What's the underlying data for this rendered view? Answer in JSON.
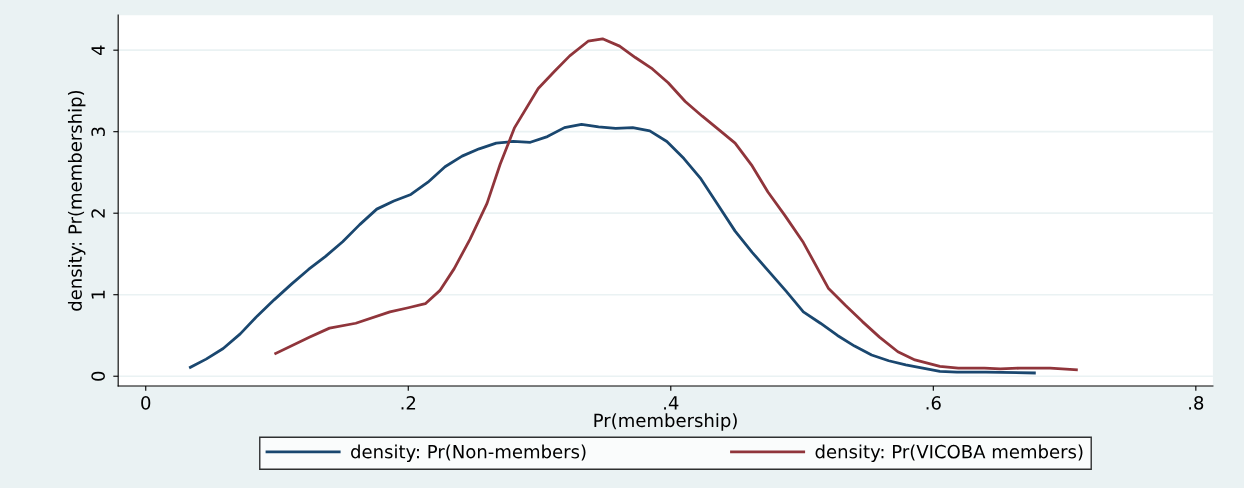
{
  "chart_data": {
    "type": "line",
    "xlabel": "Pr(membership)",
    "ylabel": "density: Pr(membership)",
    "xlim": [
      -0.021,
      0.813
    ],
    "ylim": [
      -0.12,
      4.43
    ],
    "xticks": [
      {
        "value": 0,
        "label": "0"
      },
      {
        "value": 0.2,
        "label": ".2"
      },
      {
        "value": 0.4,
        "label": ".4"
      },
      {
        "value": 0.6,
        "label": ".6"
      },
      {
        "value": 0.8,
        "label": ".8"
      }
    ],
    "yticks": [
      0,
      1,
      2,
      3,
      4
    ],
    "grid": "y",
    "legend": "bottom",
    "line_style": "solid",
    "marker": "none",
    "series": [
      {
        "name": "density: Pr(Non-members)",
        "color": "#1a476f",
        "x": [
          0.034,
          0.046,
          0.059,
          0.072,
          0.085,
          0.098,
          0.111,
          0.124,
          0.137,
          0.15,
          0.163,
          0.176,
          0.189,
          0.202,
          0.215,
          0.228,
          0.241,
          0.254,
          0.267,
          0.28,
          0.293,
          0.306,
          0.319,
          0.332,
          0.345,
          0.358,
          0.371,
          0.384,
          0.397,
          0.41,
          0.423,
          0.436,
          0.449,
          0.462,
          0.475,
          0.488,
          0.501,
          0.514,
          0.527,
          0.54,
          0.553,
          0.566,
          0.579,
          0.592,
          0.605,
          0.618,
          0.64,
          0.677
        ],
        "values": [
          0.11,
          0.21,
          0.34,
          0.52,
          0.74,
          0.94,
          1.13,
          1.31,
          1.47,
          1.65,
          1.86,
          2.05,
          2.15,
          2.23,
          2.38,
          2.57,
          2.7,
          2.79,
          2.86,
          2.88,
          2.87,
          2.94,
          3.05,
          3.09,
          3.06,
          3.04,
          3.05,
          3.01,
          2.88,
          2.67,
          2.42,
          2.1,
          1.78,
          1.52,
          1.28,
          1.04,
          0.79,
          0.65,
          0.5,
          0.37,
          0.26,
          0.19,
          0.14,
          0.1,
          0.06,
          0.05,
          0.05,
          0.04
        ]
      },
      {
        "name": "density: Pr(VICOBA members)",
        "color": "#90353b",
        "x": [
          0.099,
          0.125,
          0.14,
          0.16,
          0.186,
          0.2,
          0.213,
          0.224,
          0.235,
          0.247,
          0.26,
          0.27,
          0.281,
          0.299,
          0.312,
          0.323,
          0.337,
          0.348,
          0.361,
          0.373,
          0.386,
          0.398,
          0.411,
          0.424,
          0.437,
          0.449,
          0.462,
          0.474,
          0.487,
          0.501,
          0.52,
          0.533,
          0.546,
          0.559,
          0.573,
          0.586,
          0.605,
          0.619,
          0.639,
          0.651,
          0.666,
          0.689,
          0.709
        ],
        "values": [
          0.28,
          0.48,
          0.59,
          0.65,
          0.79,
          0.84,
          0.89,
          1.05,
          1.32,
          1.68,
          2.12,
          2.6,
          3.05,
          3.53,
          3.75,
          3.93,
          4.11,
          4.14,
          4.05,
          3.91,
          3.77,
          3.6,
          3.37,
          3.19,
          3.02,
          2.86,
          2.58,
          2.26,
          1.97,
          1.64,
          1.08,
          0.87,
          0.67,
          0.48,
          0.3,
          0.2,
          0.12,
          0.1,
          0.1,
          0.09,
          0.1,
          0.1,
          0.08
        ]
      }
    ]
  }
}
